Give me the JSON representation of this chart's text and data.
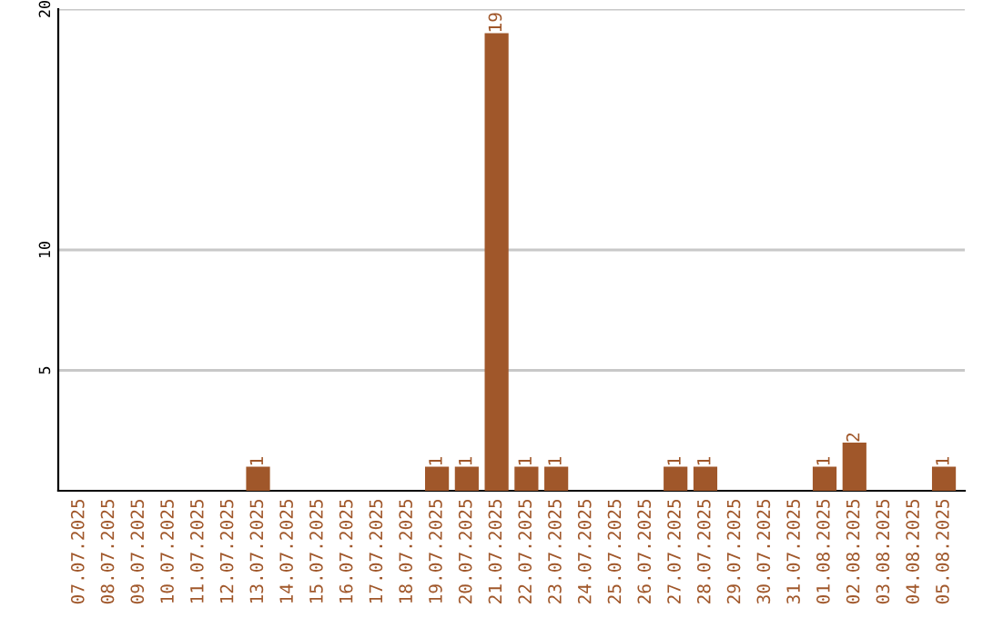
{
  "chart_data": {
    "type": "bar",
    "categories": [
      "07.07.2025",
      "08.07.2025",
      "09.07.2025",
      "10.07.2025",
      "11.07.2025",
      "12.07.2025",
      "13.07.2025",
      "14.07.2025",
      "15.07.2025",
      "16.07.2025",
      "17.07.2025",
      "18.07.2025",
      "19.07.2025",
      "20.07.2025",
      "21.07.2025",
      "22.07.2025",
      "23.07.2025",
      "24.07.2025",
      "25.07.2025",
      "26.07.2025",
      "27.07.2025",
      "28.07.2025",
      "29.07.2025",
      "30.07.2025",
      "31.07.2025",
      "01.08.2025",
      "02.08.2025",
      "03.08.2025",
      "04.08.2025",
      "05.08.2025"
    ],
    "values": [
      0,
      0,
      0,
      0,
      0,
      0,
      1,
      0,
      0,
      0,
      0,
      0,
      1,
      1,
      19,
      1,
      1,
      0,
      0,
      0,
      1,
      1,
      0,
      0,
      0,
      1,
      2,
      0,
      0,
      1
    ],
    "value_labels": [
      null,
      null,
      null,
      null,
      null,
      null,
      "1",
      null,
      null,
      null,
      null,
      null,
      "1",
      "1",
      "19",
      "1",
      "1",
      null,
      null,
      null,
      "1",
      "1",
      null,
      null,
      null,
      "1",
      "2",
      null,
      null,
      "1"
    ],
    "color": "#a0572a",
    "ylim": [
      0,
      20
    ],
    "yticks": [
      5,
      10,
      20
    ],
    "grid": "y",
    "legend": false
  }
}
